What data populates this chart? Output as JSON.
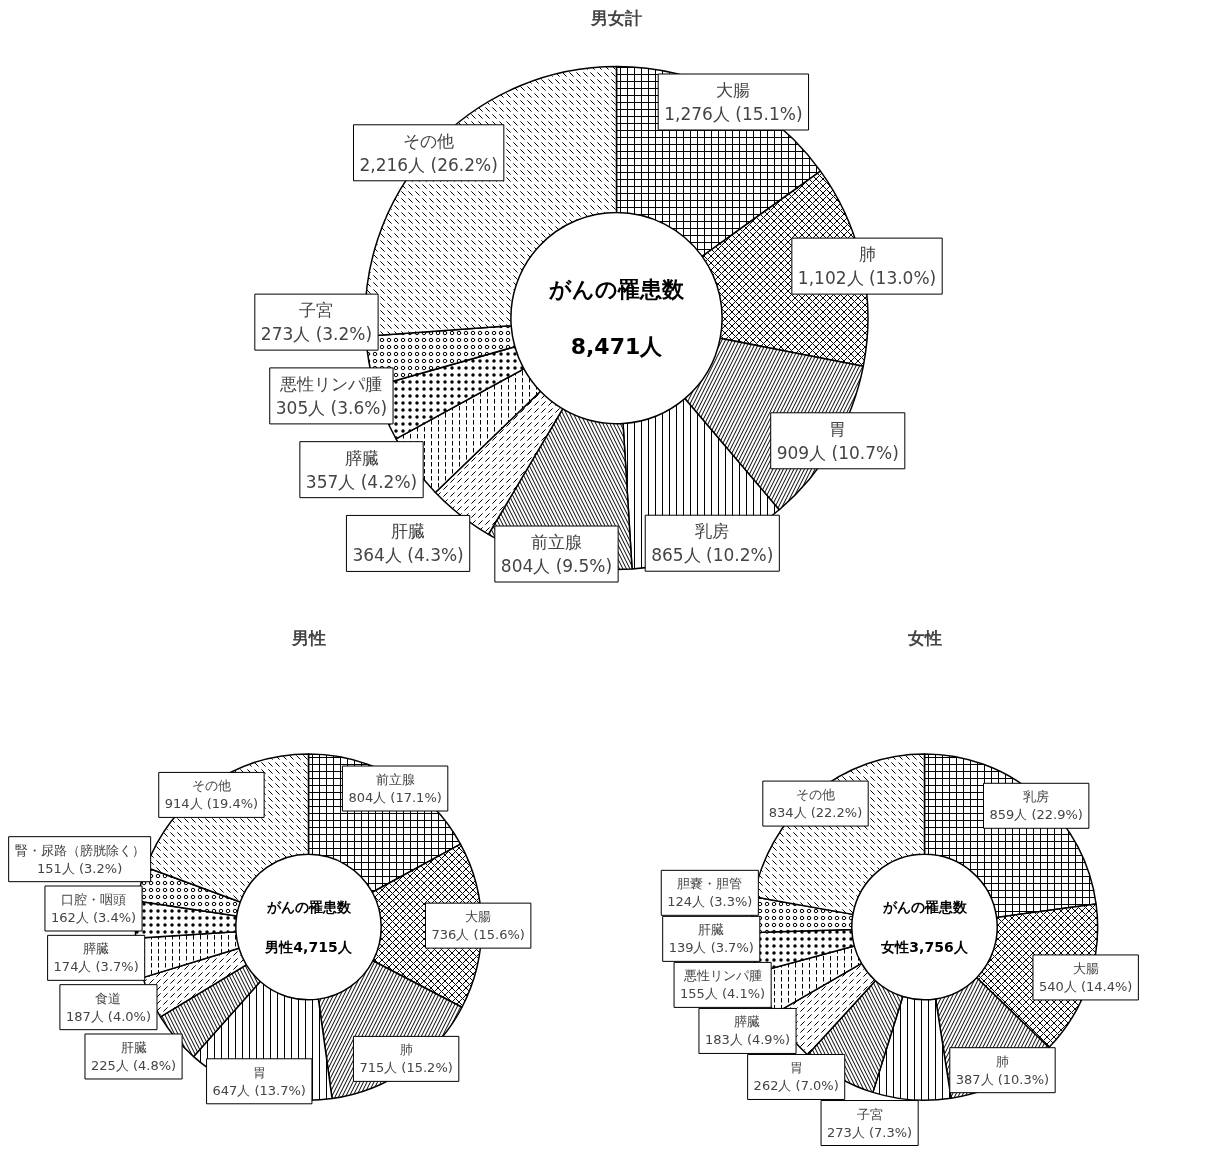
{
  "chart_data": [
    {
      "type": "donut",
      "title": "男女計",
      "categories": [
        "大腸",
        "肺",
        "胃",
        "乳房",
        "前立腺",
        "肝臓",
        "膵臓",
        "悪性リンパ腫",
        "子宮",
        "その他"
      ],
      "values": [
        1276,
        1102,
        909,
        865,
        804,
        364,
        357,
        305,
        273,
        2216
      ],
      "colors": [
        "#ffffff",
        "#ffffff",
        "#ffffff",
        "#ffffff",
        "#ffffff",
        "#ffffff",
        "#ffffff",
        "#ffffff",
        "#ffffff",
        "#ffffff"
      ],
      "value_labels": [
        "1,276人 (15.1%)",
        "1,102人 (13.0%)",
        "909人 (10.7%)",
        "865人 (10.2%)",
        "804人 (9.5%)",
        "364人 (4.3%)",
        "357人 (4.2%)",
        "305人 (3.6%)",
        "273人 (3.2%)",
        "2,216人 (26.2%)"
      ],
      "annotations": [
        "がんの罹患数",
        "8,471人"
      ]
    },
    {
      "type": "donut",
      "title": "男性",
      "categories": [
        "前立腺",
        "大腸",
        "肺",
        "胃",
        "肝臓",
        "食道",
        "膵臓",
        "口腔・咽頭",
        "腎・尿路（膀胱除く）",
        "その他"
      ],
      "values": [
        804,
        736,
        715,
        647,
        225,
        187,
        174,
        162,
        151,
        914
      ],
      "colors": [
        "#ffffff",
        "#ffffff",
        "#ffffff",
        "#ffffff",
        "#ffffff",
        "#ffffff",
        "#ffffff",
        "#ffffff",
        "#ffffff",
        "#ffffff"
      ],
      "value_labels": [
        "804人 (17.1%)",
        "736人 (15.6%)",
        "715人 (15.2%)",
        "647人 (13.7%)",
        "225人 (4.8%)",
        "187人 (4.0%)",
        "174人 (3.7%)",
        "162人 (3.4%)",
        "151人 (3.2%)",
        "914人 (19.4%)"
      ],
      "annotations": [
        "がんの罹患数",
        "男性4,715人"
      ]
    },
    {
      "type": "donut",
      "title": "女性",
      "categories": [
        "乳房",
        "大腸",
        "肺",
        "子宮",
        "胃",
        "膵臓",
        "悪性リンパ腫",
        "肝臓",
        "胆嚢・胆管",
        "その他"
      ],
      "values": [
        859,
        540,
        387,
        273,
        262,
        183,
        155,
        139,
        124,
        834
      ],
      "colors": [
        "#ffffff",
        "#ffffff",
        "#ffffff",
        "#ffffff",
        "#ffffff",
        "#ffffff",
        "#ffffff",
        "#ffffff",
        "#ffffff",
        "#ffffff"
      ],
      "value_labels": [
        "859人 (22.9%)",
        "540人 (14.4%)",
        "387人 (10.3%)",
        "273人 (7.3%)",
        "262人 (7.0%)",
        "183人 (4.9%)",
        "155人 (4.1%)",
        "139人 (3.7%)",
        "124人 (3.3%)",
        "834人 (22.2%)"
      ],
      "annotations": [
        "がんの罹患数",
        "女性3,756人"
      ]
    }
  ]
}
